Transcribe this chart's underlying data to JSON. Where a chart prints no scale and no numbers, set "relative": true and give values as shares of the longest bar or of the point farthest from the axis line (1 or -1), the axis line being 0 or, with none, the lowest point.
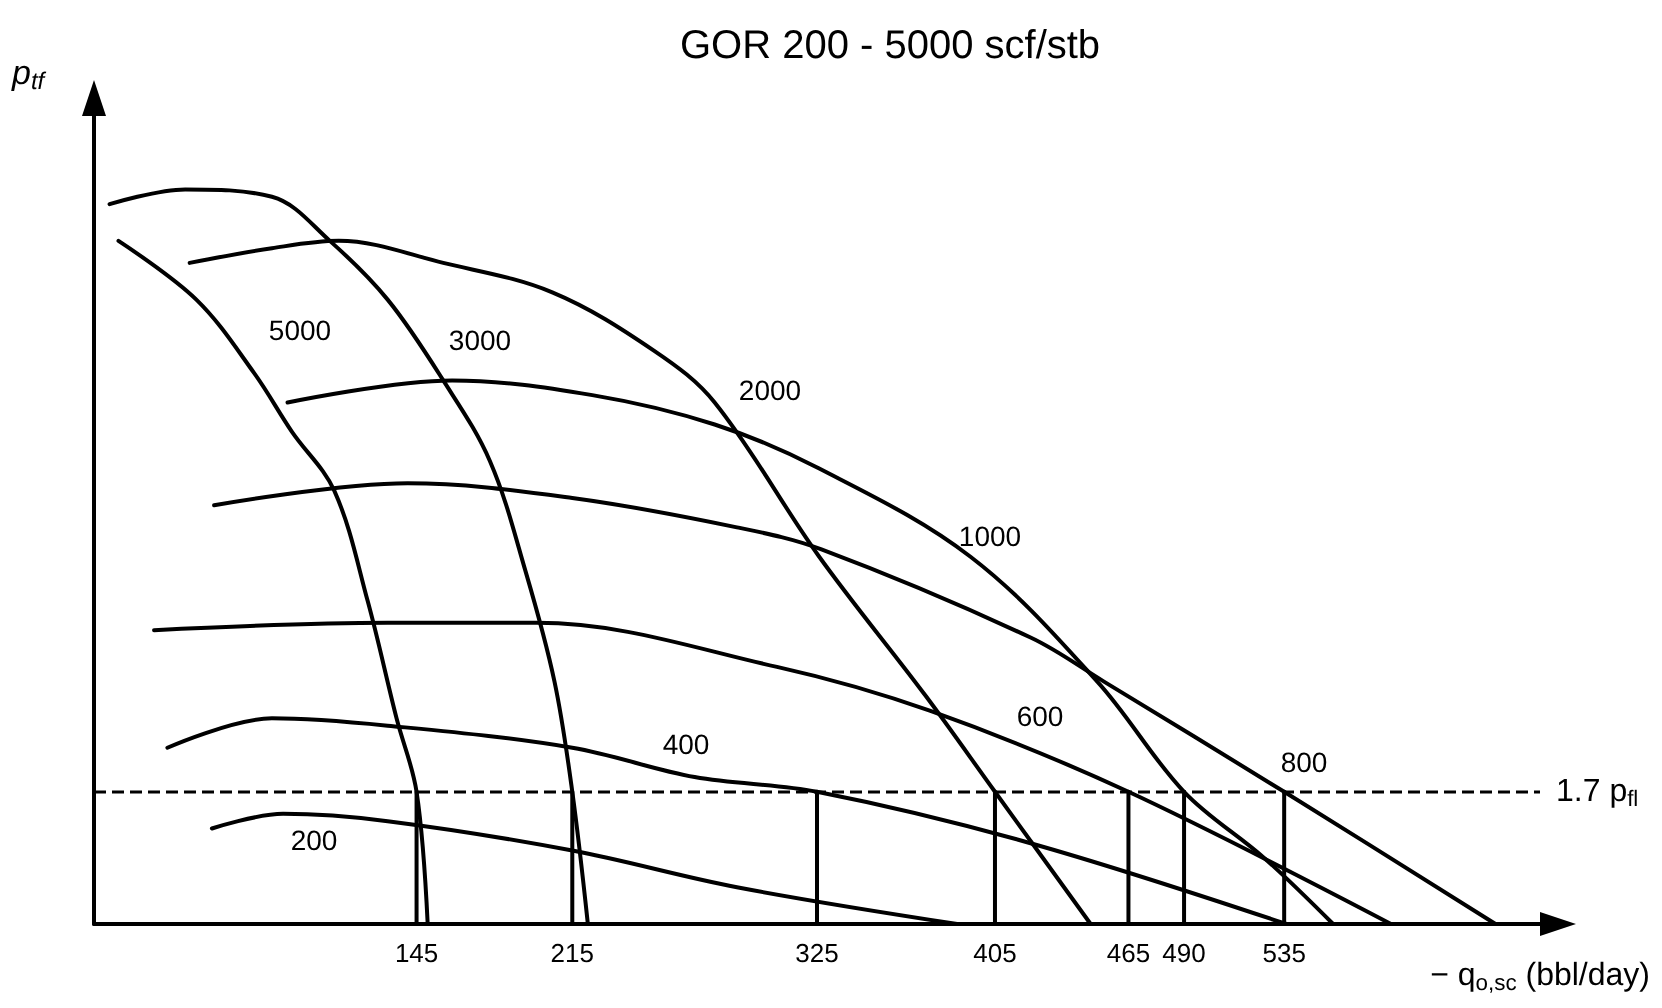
{
  "chart_data": {
    "type": "line",
    "title": "GOR 200 - 5000 scf/stb",
    "xlabel": "− q$_{o,sc}$ (bbl/day)",
    "ylabel": "p$_{tf}$",
    "relative": true,
    "xlim": [
      0,
      650
    ],
    "xticks": [
      145,
      215,
      325,
      405,
      465,
      490,
      535
    ],
    "grid": false,
    "legend": false,
    "marker": "none",
    "line_style": "solid",
    "series": [
      {
        "name": "3000",
        "color": "#000000",
        "x": [
          7,
          41,
          80,
          106,
          132,
          157,
          178,
          194,
          207,
          215,
          222
        ],
        "values": [
          0.98,
          1.0,
          0.99,
          0.93,
          0.85,
          0.74,
          0.63,
          0.48,
          0.33,
          0.18,
          0
        ]
      },
      {
        "name": "5000",
        "color": "#000000",
        "x": [
          11,
          46,
          72,
          89,
          108,
          123,
          136,
          145,
          150
        ],
        "values": [
          0.93,
          0.85,
          0.75,
          0.67,
          0.59,
          0.44,
          0.28,
          0.18,
          0
        ]
      },
      {
        "name": "2000",
        "color": "#000000",
        "x": [
          43,
          80,
          110,
          157,
          206,
          252,
          279,
          326,
          374,
          405,
          448
        ],
        "values": [
          0.9,
          0.92,
          0.93,
          0.9,
          0.86,
          0.78,
          0.71,
          0.5,
          0.31,
          0.18,
          0
        ]
      },
      {
        "name": "1000",
        "color": "#000000",
        "x": [
          87,
          161,
          224,
          279,
          326,
          394,
          451,
          490,
          526,
          557
        ],
        "values": [
          0.71,
          0.74,
          0.72,
          0.68,
          0.62,
          0.5,
          0.33,
          0.18,
          0.09,
          0
        ]
      },
      {
        "name": "800",
        "color": "#000000",
        "x": [
          54,
          141,
          215,
          289,
          327,
          421,
          454,
          535,
          630
        ],
        "values": [
          0.57,
          0.6,
          0.58,
          0.54,
          0.51,
          0.39,
          0.33,
          0.18,
          0
        ]
      },
      {
        "name": "600",
        "color": "#000000",
        "x": [
          27,
          132,
          199,
          307,
          376,
          465,
          583
        ],
        "values": [
          0.4,
          0.41,
          0.41,
          0.35,
          0.29,
          0.18,
          0
        ]
      },
      {
        "name": "400",
        "color": "#000000",
        "x": [
          33,
          80,
          132,
          215,
          270,
          325,
          421,
          536
        ],
        "values": [
          0.24,
          0.28,
          0.27,
          0.24,
          0.2,
          0.18,
          0.11,
          0
        ]
      },
      {
        "name": "200",
        "color": "#000000",
        "x": [
          53,
          85,
          132,
          215,
          289,
          388
        ],
        "values": [
          0.13,
          0.15,
          0.14,
          0.1,
          0.05,
          0
        ]
      },
      {
        "color": "#000000",
        "x": [
          145,
          145
        ],
        "values": [
          0,
          0.18
        ]
      },
      {
        "color": "#000000",
        "x": [
          215,
          215
        ],
        "values": [
          0,
          0.18
        ]
      },
      {
        "color": "#000000",
        "x": [
          325,
          325
        ],
        "values": [
          0,
          0.18
        ]
      },
      {
        "color": "#000000",
        "x": [
          405,
          405
        ],
        "values": [
          0,
          0.18
        ]
      },
      {
        "color": "#000000",
        "x": [
          465,
          465
        ],
        "values": [
          0,
          0.18
        ]
      },
      {
        "color": "#000000",
        "x": [
          490,
          490
        ],
        "values": [
          0,
          0.18
        ]
      },
      {
        "color": "#000000",
        "x": [
          535,
          535
        ],
        "values": [
          0,
          0.18
        ]
      }
    ],
    "ref_lines": [
      {
        "axis": "y",
        "value": 0.18,
        "label": "1.7 p$_{fl}$",
        "line_style": "dashed",
        "color": "#000000"
      }
    ]
  }
}
